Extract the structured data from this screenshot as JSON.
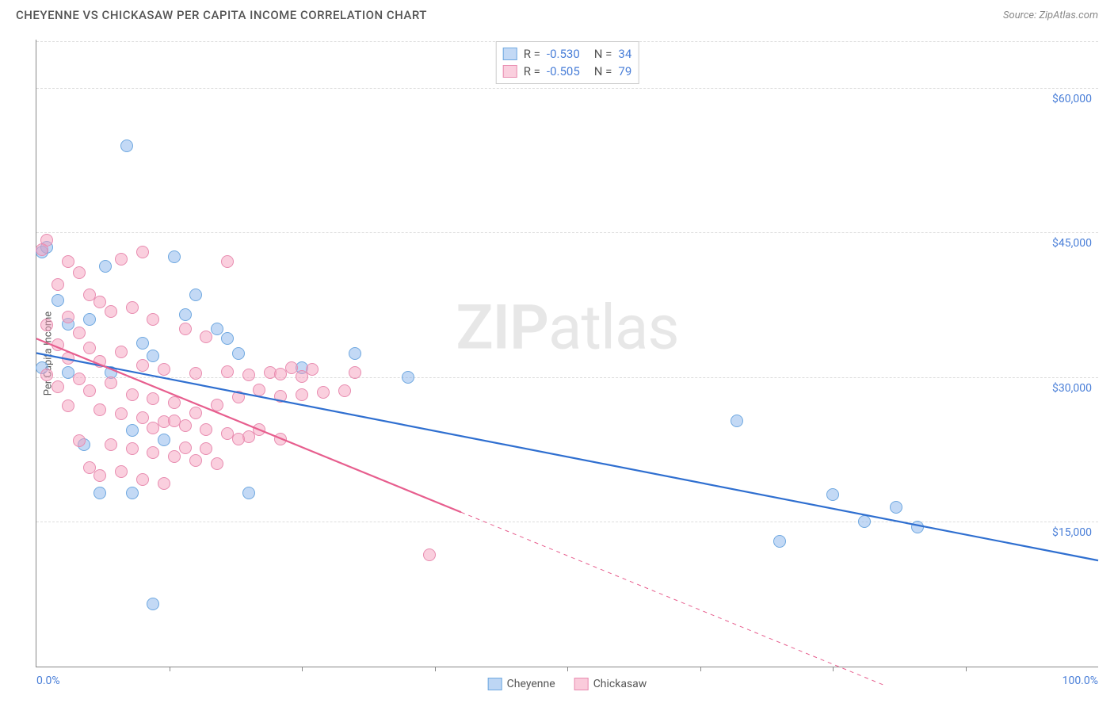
{
  "header": {
    "title": "CHEYENNE VS CHICKASAW PER CAPITA INCOME CORRELATION CHART",
    "source_prefix": "Source: ",
    "source_name": "ZipAtlas.com"
  },
  "watermark": {
    "zip": "ZIP",
    "atlas": "atlas"
  },
  "chart": {
    "type": "scatter",
    "ylabel": "Per Capita Income",
    "xlim": [
      0,
      100
    ],
    "ylim": [
      0,
      65000
    ],
    "x_min_label": "0.0%",
    "x_max_label": "100.0%",
    "xtick_positions": [
      12.5,
      25,
      37.5,
      50,
      62.5,
      75,
      87.5
    ],
    "yticks": [
      {
        "v": 15000,
        "label": "$15,000"
      },
      {
        "v": 30000,
        "label": "$30,000"
      },
      {
        "v": 45000,
        "label": "$45,000"
      },
      {
        "v": 60000,
        "label": "$60,000"
      }
    ],
    "grid_color": "#dddddd",
    "background_color": "#ffffff",
    "ytick_label_color": "#4a7fd8",
    "xtick_label_color": "#4a7fd8",
    "marker_radius": 8,
    "marker_stroke_width": 1.2,
    "series": [
      {
        "name": "Cheyenne",
        "fill": "rgba(135,180,235,0.5)",
        "stroke": "#6fa8e0",
        "trend_color": "#2f6fd0",
        "trend_width": 2.2,
        "trend": {
          "x0": 0,
          "y0": 32500,
          "x1": 100,
          "y1": 11000
        },
        "R": "-0.530",
        "N": "34",
        "points": [
          [
            8.5,
            54000
          ],
          [
            0.5,
            43000
          ],
          [
            6.5,
            41500
          ],
          [
            13,
            42500
          ],
          [
            3,
            35500
          ],
          [
            5,
            36000
          ],
          [
            10,
            33500
          ],
          [
            14,
            36500
          ],
          [
            15,
            38500
          ],
          [
            18,
            34000
          ],
          [
            17,
            35000
          ],
          [
            19,
            32500
          ],
          [
            4.5,
            23000
          ],
          [
            9,
            24500
          ],
          [
            12,
            23500
          ],
          [
            0.5,
            31000
          ],
          [
            11,
            32200
          ],
          [
            30,
            32500
          ],
          [
            25,
            31000
          ],
          [
            35,
            30000
          ],
          [
            11,
            6500
          ],
          [
            6,
            18000
          ],
          [
            9,
            18000
          ],
          [
            20,
            18000
          ],
          [
            83,
            14500
          ],
          [
            66,
            25500
          ],
          [
            70,
            13000
          ],
          [
            81,
            16500
          ],
          [
            78,
            15000
          ],
          [
            75,
            17800
          ],
          [
            1,
            43500
          ],
          [
            2,
            38000
          ],
          [
            3,
            30500
          ],
          [
            7,
            30500
          ]
        ]
      },
      {
        "name": "Chickasaw",
        "fill": "rgba(245,160,190,0.5)",
        "stroke": "#e88cb0",
        "trend_color": "#e75e8e",
        "trend_width": 2.2,
        "trend_solid_until_x": 40,
        "trend": {
          "x0": 0,
          "y0": 34000,
          "x1": 80,
          "y1": -2000
        },
        "R": "-0.505",
        "N": "79",
        "points": [
          [
            1,
            44200
          ],
          [
            0.5,
            43200
          ],
          [
            3,
            42000
          ],
          [
            4,
            40800
          ],
          [
            8,
            42200
          ],
          [
            10,
            43000
          ],
          [
            18,
            42000
          ],
          [
            2,
            39600
          ],
          [
            5,
            38500
          ],
          [
            6,
            37800
          ],
          [
            3,
            36200
          ],
          [
            7,
            36800
          ],
          [
            1,
            35400
          ],
          [
            4,
            34600
          ],
          [
            9,
            37200
          ],
          [
            11,
            36000
          ],
          [
            14,
            35000
          ],
          [
            16,
            34200
          ],
          [
            2,
            33400
          ],
          [
            5,
            33000
          ],
          [
            8,
            32600
          ],
          [
            3,
            32000
          ],
          [
            6,
            31600
          ],
          [
            10,
            31200
          ],
          [
            12,
            30800
          ],
          [
            15,
            30400
          ],
          [
            18,
            30600
          ],
          [
            20,
            30200
          ],
          [
            22,
            30500
          ],
          [
            24,
            31000
          ],
          [
            26,
            30800
          ],
          [
            30,
            30500
          ],
          [
            1,
            30200
          ],
          [
            4,
            29800
          ],
          [
            7,
            29400
          ],
          [
            2,
            29000
          ],
          [
            5,
            28600
          ],
          [
            9,
            28200
          ],
          [
            11,
            27800
          ],
          [
            13,
            27400
          ],
          [
            3,
            27000
          ],
          [
            6,
            26600
          ],
          [
            8,
            26200
          ],
          [
            10,
            25800
          ],
          [
            12,
            25400
          ],
          [
            14,
            25000
          ],
          [
            16,
            24600
          ],
          [
            18,
            24200
          ],
          [
            20,
            23800
          ],
          [
            4,
            23400
          ],
          [
            7,
            23000
          ],
          [
            9,
            22600
          ],
          [
            11,
            22200
          ],
          [
            13,
            21800
          ],
          [
            15,
            21400
          ],
          [
            17,
            21000
          ],
          [
            5,
            20600
          ],
          [
            8,
            20200
          ],
          [
            6,
            19800
          ],
          [
            10,
            19400
          ],
          [
            12,
            19000
          ],
          [
            14,
            22700
          ],
          [
            16,
            22600
          ],
          [
            19,
            23600
          ],
          [
            21,
            24600
          ],
          [
            23,
            23600
          ],
          [
            11,
            24700
          ],
          [
            13,
            25500
          ],
          [
            15,
            26300
          ],
          [
            17,
            27100
          ],
          [
            19,
            27900
          ],
          [
            21,
            28700
          ],
          [
            23,
            28000
          ],
          [
            25,
            28200
          ],
          [
            27,
            28400
          ],
          [
            29,
            28600
          ],
          [
            23,
            30300
          ],
          [
            25,
            30100
          ],
          [
            37,
            11600
          ]
        ]
      }
    ],
    "bottom_legend": [
      {
        "label": "Cheyenne",
        "fill": "rgba(135,180,235,0.55)",
        "stroke": "#6fa8e0"
      },
      {
        "label": "Chickasaw",
        "fill": "rgba(245,160,190,0.55)",
        "stroke": "#e88cb0"
      }
    ]
  }
}
